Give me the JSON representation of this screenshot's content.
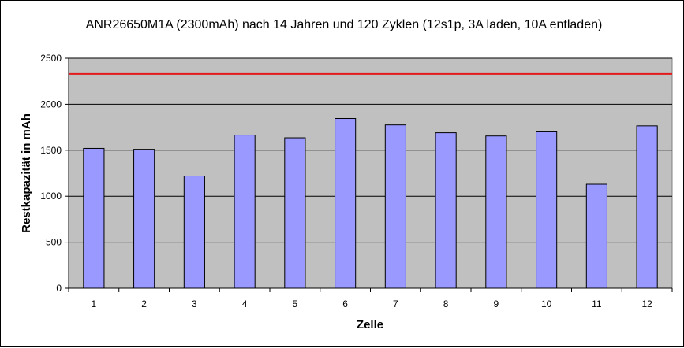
{
  "chart_data": {
    "type": "bar",
    "title": "ANR26650M1A (2300mAh) nach 14 Jahren und 120 Zyklen (12s1p, 3A laden, 10A entladen)",
    "xlabel": "Zelle",
    "ylabel": "Restkapazität in mAh",
    "categories": [
      "1",
      "2",
      "3",
      "4",
      "5",
      "6",
      "7",
      "8",
      "9",
      "10",
      "11",
      "12"
    ],
    "values": [
      1520,
      1510,
      1220,
      1665,
      1635,
      1845,
      1775,
      1690,
      1655,
      1700,
      1130,
      1765
    ],
    "ylim": [
      0,
      2500
    ],
    "yticks": [
      0,
      500,
      1000,
      1500,
      2000,
      2500
    ],
    "reference_line": {
      "value": 2330,
      "color": "#e31a1c"
    },
    "grid": true,
    "legend": "none",
    "colors": {
      "bar_fill": "#9999ff",
      "bar_stroke": "#000000",
      "plot_background": "#c0c0c0",
      "gridline": "#000000"
    }
  }
}
